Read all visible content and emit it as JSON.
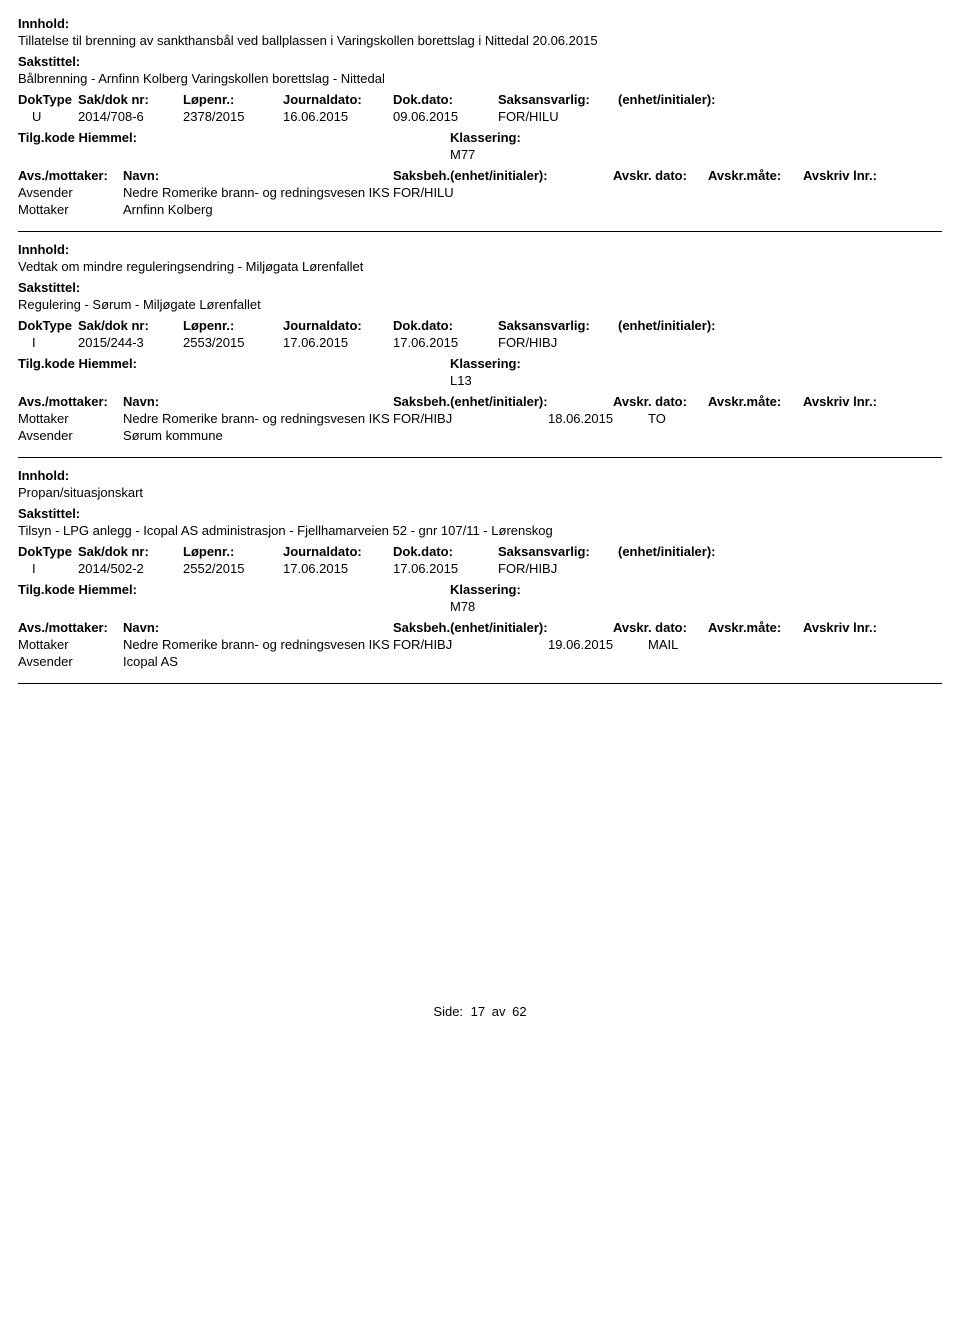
{
  "labels": {
    "innhold": "Innhold:",
    "sakstittel": "Sakstittel:",
    "doktype": "DokType",
    "sakdok": "Sak/dok nr:",
    "lopenr": "Løpenr.:",
    "journaldato": "Journaldato:",
    "dokdato": "Dok.dato:",
    "saksansvarlig": "Saksansvarlig:",
    "enhet": "(enhet/initialer):",
    "tilgkode": "Tilg.kode",
    "hjemmel": "Hiemmel:",
    "klassering": "Klassering:",
    "avsmottaker": "Avs./mottaker:",
    "navn": "Navn:",
    "saksbeh": "Saksbeh.(enhet/initialer):",
    "avskrdato": "Avskr. dato:",
    "avskrmate": "Avskr.måte:",
    "avskrlnr": "Avskriv lnr.:",
    "avsender": "Avsender",
    "mottaker": "Mottaker"
  },
  "records": [
    {
      "innhold": "Tillatelse til brenning av sankthansbål ved ballplassen i Varingskollen borettslag i Nittedal 20.06.2015",
      "sakstittel": "Bålbrenning - Arnfinn Kolberg Varingskollen borettslag - Nittedal",
      "doktype": "U",
      "sakdok": "2014/708-6",
      "lopenr": "2378/2015",
      "journaldato": "16.06.2015",
      "dokdato": "09.06.2015",
      "saksansvarlig": "FOR/HILU",
      "klassering": "M77",
      "parties": [
        {
          "role": "Avsender",
          "navn": "Nedre Romerike brann- og redningsvesen IKS",
          "saksbeh": "FOR/HILU",
          "avskrdato": "",
          "avskrmate": ""
        },
        {
          "role": "Mottaker",
          "navn": "Arnfinn Kolberg",
          "saksbeh": "",
          "avskrdato": "",
          "avskrmate": ""
        }
      ]
    },
    {
      "innhold": "Vedtak om mindre reguleringsendring - Miljøgata Lørenfallet",
      "sakstittel": "Regulering - Sørum - Miljøgate Lørenfallet",
      "doktype": "I",
      "sakdok": "2015/244-3",
      "lopenr": "2553/2015",
      "journaldato": "17.06.2015",
      "dokdato": "17.06.2015",
      "saksansvarlig": "FOR/HIBJ",
      "klassering": "L13",
      "parties": [
        {
          "role": "Mottaker",
          "navn": "Nedre Romerike brann- og redningsvesen IKS",
          "saksbeh": "FOR/HIBJ",
          "avskrdato": "18.06.2015",
          "avskrmate": "TO"
        },
        {
          "role": "Avsender",
          "navn": "Sørum kommune",
          "saksbeh": "",
          "avskrdato": "",
          "avskrmate": ""
        }
      ]
    },
    {
      "innhold": "Propan/situasjonskart",
      "sakstittel": "Tilsyn - LPG anlegg - Icopal AS administrasjon - Fjellhamarveien 52 - gnr 107/11 - Lørenskog",
      "doktype": "I",
      "sakdok": "2014/502-2",
      "lopenr": "2552/2015",
      "journaldato": "17.06.2015",
      "dokdato": "17.06.2015",
      "saksansvarlig": "FOR/HIBJ",
      "klassering": "M78",
      "parties": [
        {
          "role": "Mottaker",
          "navn": "Nedre Romerike brann- og redningsvesen IKS",
          "saksbeh": "FOR/HIBJ",
          "avskrdato": "19.06.2015",
          "avskrmate": "MAIL"
        },
        {
          "role": "Avsender",
          "navn": "Icopal AS",
          "saksbeh": "",
          "avskrdato": "",
          "avskrmate": ""
        }
      ]
    }
  ],
  "footer": {
    "side_label": "Side:",
    "page": "17",
    "av": "av",
    "total": "62"
  }
}
